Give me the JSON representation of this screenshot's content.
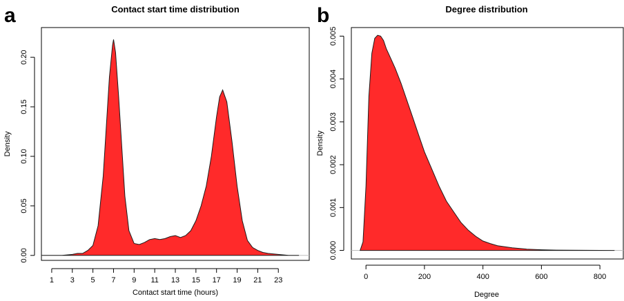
{
  "colors": {
    "fill": "#ff2a2a",
    "outline": "#1a1a1a",
    "baseline": "#bdbdbd"
  },
  "chart_data": [
    {
      "panel_label": "a",
      "type": "area",
      "title": "Contact start time distribution",
      "xlabel": "Contact start time (hours)",
      "ylabel": "Density",
      "xlim": [
        0,
        26
      ],
      "ylim": [
        -0.005,
        0.23
      ],
      "xticks": [
        1,
        3,
        5,
        7,
        9,
        11,
        13,
        15,
        17,
        19,
        21,
        23
      ],
      "xtick_labels": [
        "1",
        "3",
        "5",
        "7",
        "9",
        "11",
        "13",
        "15",
        "17",
        "19",
        "21",
        "23"
      ],
      "yticks": [
        0.0,
        0.05,
        0.1,
        0.15,
        0.2
      ],
      "ytick_labels": [
        "0.00",
        "0.05",
        "0.10",
        "0.15",
        "0.20"
      ],
      "x": [
        0,
        1,
        2,
        3,
        3.5,
        4,
        4.5,
        5,
        5.5,
        6,
        6.3,
        6.6,
        6.9,
        7.0,
        7.2,
        7.5,
        7.8,
        8.1,
        8.5,
        9,
        9.5,
        10,
        10.5,
        11,
        11.5,
        12,
        12.5,
        13,
        13.5,
        14,
        14.5,
        15,
        15.5,
        16,
        16.5,
        17,
        17.3,
        17.6,
        18,
        18.5,
        19,
        19.5,
        20,
        20.5,
        21,
        21.5,
        22,
        23,
        24,
        25
      ],
      "y": [
        0.0,
        0.0,
        0.0,
        0.001,
        0.002,
        0.002,
        0.005,
        0.01,
        0.03,
        0.08,
        0.13,
        0.18,
        0.212,
        0.218,
        0.205,
        0.16,
        0.11,
        0.06,
        0.025,
        0.012,
        0.011,
        0.013,
        0.016,
        0.017,
        0.016,
        0.017,
        0.019,
        0.02,
        0.018,
        0.02,
        0.025,
        0.035,
        0.05,
        0.07,
        0.1,
        0.14,
        0.16,
        0.167,
        0.155,
        0.115,
        0.07,
        0.035,
        0.015,
        0.008,
        0.005,
        0.003,
        0.002,
        0.001,
        0.0,
        0.0
      ]
    },
    {
      "panel_label": "b",
      "type": "area",
      "title": "Degree distribution",
      "xlabel": "Degree",
      "ylabel": "Density",
      "xlim": [
        -50,
        880
      ],
      "ylim": [
        -0.0002,
        0.0052
      ],
      "xticks": [
        0,
        200,
        400,
        600,
        800
      ],
      "xtick_labels": [
        "0",
        "200",
        "400",
        "600",
        "800"
      ],
      "yticks": [
        0.0,
        0.001,
        0.002,
        0.003,
        0.004,
        0.005
      ],
      "ytick_labels": [
        "0.000",
        "0.001",
        "0.002",
        "0.003",
        "0.004",
        "0.005"
      ],
      "x": [
        -20,
        -10,
        0,
        10,
        20,
        30,
        40,
        50,
        60,
        70,
        80,
        100,
        120,
        140,
        160,
        180,
        200,
        225,
        250,
        275,
        300,
        325,
        350,
        375,
        400,
        425,
        450,
        500,
        550,
        600,
        650,
        700,
        750,
        800,
        850
      ],
      "y": [
        0.0,
        0.0002,
        0.0015,
        0.0036,
        0.0046,
        0.00495,
        0.00502,
        0.005,
        0.0049,
        0.0047,
        0.00455,
        0.00425,
        0.0039,
        0.0035,
        0.0031,
        0.0027,
        0.0023,
        0.0019,
        0.0015,
        0.00115,
        0.0009,
        0.00065,
        0.00047,
        0.00033,
        0.00022,
        0.00016,
        0.00011,
        6e-05,
        3e-05,
        1.5e-05,
        8e-06,
        4e-06,
        2e-06,
        1e-06,
        0.0
      ]
    }
  ]
}
